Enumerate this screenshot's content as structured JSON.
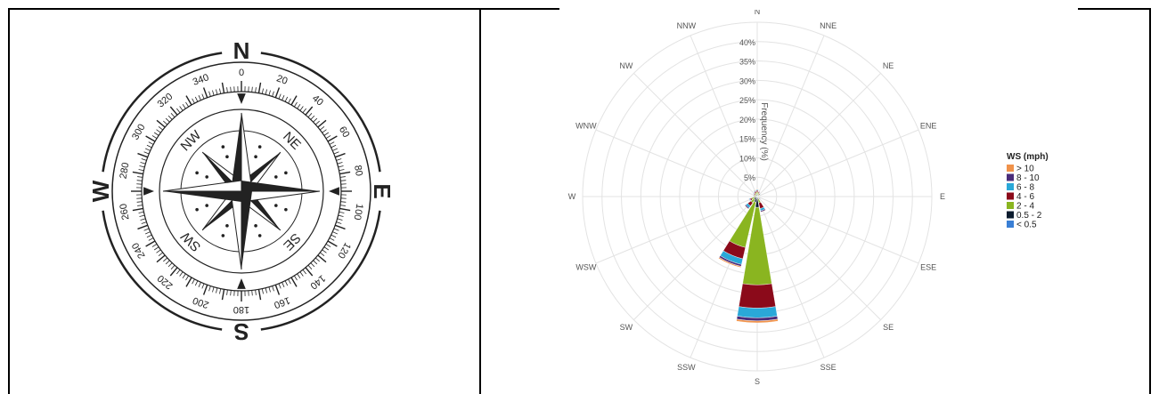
{
  "compass": {
    "cardinals": [
      "N",
      "E",
      "S",
      "W"
    ],
    "intercardinals": [
      "NE",
      "SE",
      "SW",
      "NW"
    ],
    "degree_labels": [
      "0",
      "20",
      "40",
      "60",
      "80",
      "100",
      "120",
      "140",
      "160",
      "180",
      "200",
      "220",
      "240",
      "260",
      "280",
      "300",
      "320",
      "340"
    ],
    "color": "#222222"
  },
  "chart_data": {
    "type": "windrose",
    "directions": [
      "N",
      "NNE",
      "NE",
      "ENE",
      "E",
      "ESE",
      "SE",
      "SSE",
      "S",
      "SSW",
      "SW",
      "WSW",
      "W",
      "WNW",
      "NW",
      "NNW"
    ],
    "radial_ticks": [
      "5%",
      "10%",
      "15%",
      "20%",
      "25%",
      "30%",
      "35%",
      "40%"
    ],
    "radial_max": 45,
    "radial_axis_label": "Frequency (%)",
    "legend_title": "WS (mph)",
    "legend_placement": "right",
    "series": [
      {
        "name": "< 0.5",
        "color": "#3a7fd5",
        "values": [
          0.1,
          0.1,
          0.1,
          0.1,
          0.1,
          0.1,
          0.1,
          0.2,
          0.3,
          0.3,
          0.2,
          0.2,
          0.1,
          0.1,
          0.1,
          0.1
        ]
      },
      {
        "name": "0.5 - 2",
        "color": "#0b1b2e",
        "values": [
          0.6,
          0.4,
          0.3,
          0.2,
          0.1,
          0.1,
          0.2,
          0.5,
          2.5,
          1.2,
          0.8,
          0.6,
          0.4,
          0.3,
          0.4,
          0.5
        ]
      },
      {
        "name": "2 - 4",
        "color": "#8ab520",
        "values": [
          0.5,
          0.4,
          0.3,
          0.2,
          0.1,
          0.2,
          0.3,
          1.0,
          20.0,
          12.0,
          1.0,
          0.7,
          0.3,
          0.3,
          0.3,
          0.4
        ]
      },
      {
        "name": "4 - 6",
        "color": "#8b0a1a",
        "values": [
          0.4,
          0.3,
          0.2,
          0.1,
          0.1,
          0.1,
          0.2,
          1.5,
          6.0,
          3.0,
          1.0,
          0.4,
          0.2,
          0.2,
          0.3,
          0.4
        ]
      },
      {
        "name": "6 - 8",
        "color": "#2aa8d8",
        "values": [
          0.2,
          0.1,
          0.1,
          0.1,
          0.0,
          0.1,
          0.1,
          0.6,
          2.5,
          1.5,
          0.6,
          0.2,
          0.1,
          0.1,
          0.1,
          0.2
        ]
      },
      {
        "name": "8 - 10",
        "color": "#4a2c7a",
        "values": [
          0.1,
          0.1,
          0.0,
          0.0,
          0.0,
          0.0,
          0.1,
          0.3,
          0.8,
          0.5,
          0.3,
          0.1,
          0.0,
          0.0,
          0.1,
          0.1
        ]
      },
      {
        "name": "> 10",
        "color": "#f0924a",
        "values": [
          0.1,
          0.0,
          0.0,
          0.0,
          0.0,
          0.0,
          0.0,
          0.1,
          0.5,
          0.3,
          0.1,
          0.0,
          0.0,
          0.0,
          0.0,
          0.1
        ]
      }
    ]
  }
}
